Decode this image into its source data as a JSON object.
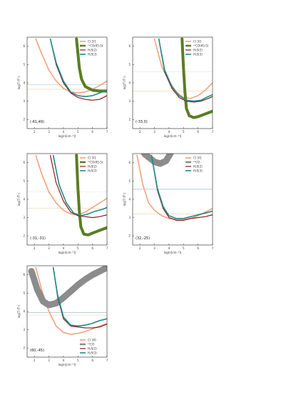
{
  "chart_data": [
    {
      "type": "line",
      "panel_label": "(-61,49)",
      "xlabel": "log(n[cm⁻³])",
      "ylabel": "log(Tᵀ/Tᵏ)",
      "xlim": [
        1.5,
        7
      ],
      "ylim": [
        1.5,
        6.5
      ],
      "xticks": [
        2,
        3,
        4,
        5,
        6,
        7
      ],
      "yticks": [
        2,
        3,
        4,
        5,
        6
      ],
      "legend": "top-right",
      "series": [
        {
          "name": "CI 3/1",
          "color": "#f2a27e",
          "width": 1.6,
          "x": [
            2.1,
            2.5,
            3.0,
            3.5,
            4.0,
            4.5,
            5.0,
            5.5,
            6.0,
            6.5,
            7.0
          ],
          "y": [
            6.4,
            5.6,
            4.7,
            4.1,
            3.7,
            3.5,
            3.45,
            3.5,
            3.65,
            3.85,
            4.1
          ]
        },
        {
          "name": "¹²CO(65-5)",
          "color": "#5a7d22",
          "width": 4.0,
          "x": [
            4.9,
            5.0,
            5.1,
            5.25,
            5.5,
            6.0,
            6.5,
            7.0
          ],
          "y": [
            6.4,
            5.6,
            4.8,
            4.2,
            3.8,
            3.6,
            3.55,
            3.55
          ]
        },
        {
          "name": "H₂S(2)",
          "color": "#8b1a1a",
          "width": 1.2,
          "x": [
            3.1,
            3.5,
            4.0,
            4.5,
            5.0,
            5.5,
            6.0,
            6.5,
            7.0
          ],
          "y": [
            6.4,
            5.0,
            4.0,
            3.45,
            3.2,
            3.1,
            3.05,
            3.1,
            3.3
          ]
        },
        {
          "name": "H₂S(3)",
          "color": "#1f8a8a",
          "width": 1.6,
          "x": [
            3.1,
            3.5,
            4.0,
            4.5,
            5.0,
            5.5,
            6.0,
            6.5,
            7.0
          ],
          "y": [
            6.4,
            5.1,
            4.1,
            3.5,
            3.3,
            3.25,
            3.3,
            3.45,
            3.6
          ]
        }
      ],
      "hlines": [
        {
          "y": 3.9,
          "color": "#4a9a9a"
        },
        {
          "y": 3.65,
          "color": "#d2a04a"
        }
      ]
    },
    {
      "type": "line",
      "panel_label": "(-33,0)",
      "xlabel": "log(n[cm⁻³])",
      "ylabel": "log(Tᵀ/Tᵏ)",
      "xlim": [
        1.5,
        7
      ],
      "ylim": [
        1.5,
        6.5
      ],
      "xticks": [
        2,
        3,
        4,
        5,
        6,
        7
      ],
      "yticks": [
        2,
        3,
        4,
        5,
        6
      ],
      "legend": "top-right",
      "series": [
        {
          "name": "CI 3/1",
          "color": "#f2a27e",
          "width": 1.6,
          "x": [
            3.0,
            3.5,
            4.0,
            4.5,
            5.0,
            5.5,
            6.0,
            6.5,
            7.0
          ],
          "y": [
            6.4,
            4.9,
            4.1,
            3.5,
            3.2,
            3.15,
            3.3,
            3.6,
            4.0
          ]
        },
        {
          "name": "¹²CO(65-5)",
          "color": "#5a7d22",
          "width": 4.0,
          "x": [
            4.9,
            5.0,
            5.1,
            5.2,
            5.4,
            5.7,
            6.0,
            6.5,
            7.0
          ],
          "y": [
            6.4,
            4.8,
            3.5,
            2.6,
            2.2,
            2.1,
            2.15,
            2.3,
            2.45
          ]
        },
        {
          "name": "H₂S(2)",
          "color": "#8b1a1a",
          "width": 1.2,
          "x": [
            3.3,
            3.7,
            4.2,
            4.7,
            5.2,
            5.7,
            6.2,
            6.7,
            7.0
          ],
          "y": [
            6.4,
            4.6,
            3.7,
            3.2,
            3.0,
            2.95,
            3.0,
            3.15,
            3.25
          ]
        },
        {
          "name": "H₂S(3)",
          "color": "#1f8a8a",
          "width": 1.6,
          "x": [
            3.3,
            3.7,
            4.2,
            4.7,
            5.2,
            5.7,
            6.2,
            6.7,
            7.0
          ],
          "y": [
            6.4,
            4.7,
            3.8,
            3.3,
            3.05,
            3.0,
            3.05,
            3.25,
            3.35
          ]
        }
      ],
      "hlines": [
        {
          "y": 4.6,
          "color": "#9fd6d6"
        },
        {
          "y": 3.55,
          "color": "#d2a04a"
        }
      ]
    },
    {
      "type": "line",
      "panel_label": "(-31,-31)",
      "xlabel": "log(n[cm⁻³])",
      "ylabel": "log(Tᵀ/Tᵏ)",
      "xlim": [
        1.5,
        7
      ],
      "ylim": [
        1.5,
        6.5
      ],
      "xticks": [
        2,
        3,
        4,
        5,
        6,
        7
      ],
      "yticks": [
        2,
        3,
        4,
        5,
        6
      ],
      "legend": "top-right",
      "series": [
        {
          "name": "CI 3/1",
          "color": "#f2a27e",
          "width": 1.6,
          "x": [
            2.1,
            2.5,
            3.0,
            3.5,
            4.0,
            4.5,
            5.0,
            5.5,
            6.0,
            6.5,
            7.0
          ],
          "y": [
            6.4,
            5.4,
            4.4,
            3.8,
            3.4,
            3.2,
            3.15,
            3.3,
            3.55,
            3.8,
            4.05
          ]
        },
        {
          "name": "¹²CO(65-5)",
          "color": "#5a7d22",
          "width": 4.0,
          "x": [
            4.9,
            5.0,
            5.1,
            5.2,
            5.4,
            5.7,
            6.0,
            6.5,
            7.0
          ],
          "y": [
            6.4,
            4.6,
            3.3,
            2.5,
            2.1,
            2.05,
            2.15,
            2.3,
            2.45
          ]
        },
        {
          "name": "H₂S(2)",
          "color": "#8b1a1a",
          "width": 1.2,
          "x": [
            3.1,
            3.5,
            4.0,
            4.5,
            5.0,
            5.5,
            6.0,
            6.5,
            7.0
          ],
          "y": [
            6.4,
            4.9,
            3.9,
            3.3,
            3.1,
            3.05,
            3.0,
            3.05,
            3.15
          ]
        },
        {
          "name": "H₂S(3)",
          "color": "#1f8a8a",
          "width": 1.6,
          "x": [
            3.3,
            3.7,
            4.2,
            4.7,
            5.2,
            5.7,
            6.2,
            6.7,
            7.0
          ],
          "y": [
            6.4,
            4.8,
            3.8,
            3.25,
            3.1,
            3.2,
            3.35,
            3.45,
            3.55
          ]
        }
      ],
      "hlines": [
        {
          "y": 4.4,
          "color": "#9fd6d6"
        },
        {
          "y": 3.5,
          "color": "#d2a04a"
        }
      ]
    },
    {
      "type": "line",
      "panel_label": "(32,-25)",
      "xlabel": "log(n[cm⁻³])",
      "ylabel": "log(Tᵀ/Tᵏ)",
      "xlim": [
        1.5,
        7
      ],
      "ylim": [
        1.5,
        6.5
      ],
      "xticks": [
        2,
        3,
        4,
        5,
        6,
        7
      ],
      "yticks": [
        2,
        3,
        4,
        5,
        6
      ],
      "legend": "top-right",
      "series": [
        {
          "name": "CI 3/1",
          "color": "#f2a27e",
          "width": 1.6,
          "x": [
            1.8,
            2.2,
            2.6,
            3.0,
            3.5,
            4.0,
            4.5,
            5.0,
            5.5,
            6.0,
            6.5,
            7.0
          ],
          "y": [
            6.4,
            4.8,
            3.8,
            3.4,
            3.1,
            2.95,
            2.9,
            2.9,
            2.95,
            3.1,
            3.3,
            3.5
          ]
        },
        {
          "name": "¹³CO",
          "color": "#8c8c8c",
          "width": 9.0,
          "x": [
            2.3,
            2.6,
            3.0,
            3.4,
            3.8,
            4.1
          ],
          "y": [
            6.5,
            6.3,
            6.05,
            5.95,
            6.1,
            6.5
          ]
        },
        {
          "name": "H₂S(2)",
          "color": "#8b1a1a",
          "width": 1.2,
          "x": [
            2.8,
            3.2,
            3.6,
            4.0,
            4.5,
            5.0,
            5.5,
            6.0,
            6.5,
            7.0
          ],
          "y": [
            6.4,
            4.5,
            3.5,
            3.0,
            2.85,
            2.85,
            2.95,
            3.0,
            3.05,
            3.15
          ]
        },
        {
          "name": "H₂S(3)",
          "color": "#1f8a8a",
          "width": 1.6,
          "x": [
            2.8,
            3.2,
            3.6,
            4.0,
            4.5,
            5.0,
            5.5,
            6.0,
            6.5,
            7.0
          ],
          "y": [
            6.4,
            4.6,
            3.6,
            3.1,
            2.95,
            2.95,
            3.05,
            3.15,
            3.25,
            3.35
          ]
        }
      ],
      "hlines": [
        {
          "y": 4.55,
          "color": "#1f6f6f"
        },
        {
          "y": 3.2,
          "color": "#d2a04a"
        }
      ]
    },
    {
      "type": "line",
      "panel_label": "(60,-45)",
      "xlabel": "log(n[cm⁻³])",
      "ylabel": "log(Tᵀ/Tᵏ)",
      "xlim": [
        1.5,
        7
      ],
      "ylim": [
        1.5,
        6.5
      ],
      "xticks": [
        2,
        3,
        4,
        5,
        6,
        7
      ],
      "yticks": [
        2,
        3,
        4,
        5,
        6
      ],
      "legend": "bottom-right",
      "series": [
        {
          "name": "CI 3/0",
          "color": "#f2a27e",
          "width": 1.6,
          "x": [
            2.1,
            2.5,
            3.0,
            3.5,
            4.0,
            4.5,
            5.0,
            5.5,
            6.0,
            6.5,
            7.0
          ],
          "y": [
            6.4,
            5.2,
            4.0,
            3.2,
            2.85,
            2.75,
            2.8,
            2.9,
            3.05,
            3.2,
            3.35
          ]
        },
        {
          "name": "¹³CO",
          "color": "#8c8c8c",
          "width": 9.0,
          "x": [
            1.8,
            2.2,
            2.6,
            3.0,
            3.5,
            4.0,
            4.5,
            5.0,
            5.5,
            6.0,
            6.5,
            7.0
          ],
          "y": [
            6.2,
            5.2,
            4.55,
            4.35,
            4.45,
            4.75,
            5.1,
            5.45,
            5.75,
            6.0,
            6.2,
            6.4
          ]
        },
        {
          "name": "H₂S(2)",
          "color": "#8b1a1a",
          "width": 1.2,
          "x": [
            3.3,
            3.6,
            4.0,
            4.5,
            5.0,
            5.5,
            6.0,
            6.5,
            7.0
          ],
          "y": [
            6.4,
            4.8,
            3.6,
            3.2,
            3.15,
            3.1,
            3.1,
            3.15,
            3.3
          ]
        },
        {
          "name": "H₂S(3)",
          "color": "#1f8a8a",
          "width": 1.6,
          "x": [
            3.3,
            3.6,
            4.0,
            4.5,
            5.0,
            5.5,
            6.0,
            6.5,
            7.0
          ],
          "y": [
            6.4,
            4.9,
            3.7,
            3.25,
            3.2,
            3.25,
            3.35,
            3.5,
            3.6
          ]
        }
      ],
      "hlines": [
        {
          "y": 3.95,
          "color": "#1f6f6f"
        },
        {
          "y": 3.8,
          "color": "#d2a04a"
        }
      ]
    }
  ]
}
